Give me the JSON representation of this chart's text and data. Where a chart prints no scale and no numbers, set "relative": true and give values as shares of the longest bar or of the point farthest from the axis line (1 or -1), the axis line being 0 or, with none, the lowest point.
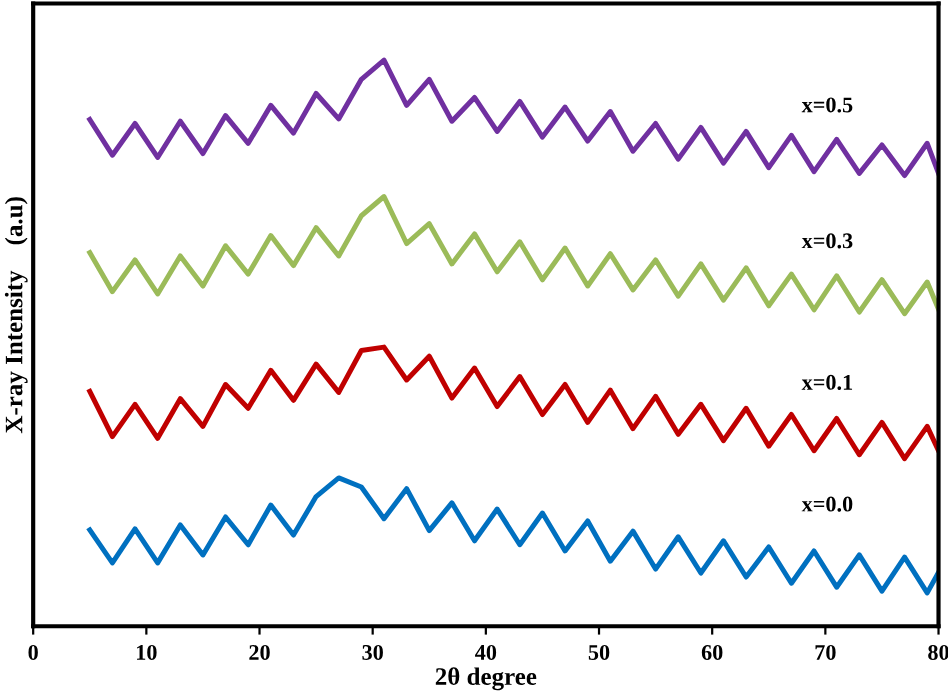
{
  "chart_data": {
    "type": "line",
    "relative": true,
    "xlabel": "2θ degree",
    "ylabel": "X-ray Intensity    (a.u)",
    "xlim": [
      0,
      80
    ],
    "xticks": [
      0,
      10,
      20,
      30,
      40,
      50,
      60,
      70,
      80
    ],
    "grid": false,
    "marker": "none",
    "line_style": "solid",
    "tick_labels": "x",
    "x": [
      5,
      7,
      9,
      11,
      13,
      15,
      17,
      19,
      21,
      23,
      25,
      27,
      29,
      31,
      33,
      35,
      37,
      39,
      41,
      43,
      45,
      47,
      49,
      51,
      53,
      55,
      57,
      59,
      61,
      63,
      65,
      67,
      69,
      71,
      73,
      75,
      77,
      79,
      80
    ],
    "series": [
      {
        "name": "x=0.5",
        "color": "#7030a0",
        "values": [
          0.895,
          0.832,
          0.888,
          0.828,
          0.892,
          0.835,
          0.902,
          0.853,
          0.92,
          0.871,
          0.941,
          0.896,
          0.966,
          1.0,
          0.92,
          0.966,
          0.892,
          0.934,
          0.874,
          0.927,
          0.864,
          0.917,
          0.857,
          0.909,
          0.839,
          0.888,
          0.825,
          0.881,
          0.818,
          0.874,
          0.81,
          0.867,
          0.803,
          0.86,
          0.8,
          0.85,
          0.796,
          0.853,
          0.8
        ]
      },
      {
        "name": "x=0.3",
        "color": "#9bbb59",
        "values": [
          0.66,
          0.591,
          0.647,
          0.587,
          0.654,
          0.601,
          0.672,
          0.622,
          0.69,
          0.637,
          0.704,
          0.654,
          0.725,
          0.759,
          0.676,
          0.711,
          0.64,
          0.693,
          0.626,
          0.679,
          0.612,
          0.668,
          0.601,
          0.658,
          0.594,
          0.647,
          0.583,
          0.64,
          0.576,
          0.633,
          0.566,
          0.622,
          0.559,
          0.619,
          0.555,
          0.612,
          0.552,
          0.608,
          0.56
        ]
      },
      {
        "name": "x=0.1",
        "color": "#c00000",
        "values": [
          0.415,
          0.335,
          0.392,
          0.332,
          0.402,
          0.353,
          0.427,
          0.385,
          0.452,
          0.399,
          0.463,
          0.413,
          0.487,
          0.493,
          0.435,
          0.477,
          0.403,
          0.456,
          0.388,
          0.441,
          0.374,
          0.427,
          0.36,
          0.417,
          0.349,
          0.406,
          0.339,
          0.392,
          0.328,
          0.385,
          0.318,
          0.374,
          0.31,
          0.367,
          0.303,
          0.36,
          0.296,
          0.353,
          0.31
        ]
      },
      {
        "name": "x=0.0",
        "color": "#0070c0",
        "values": [
          0.17,
          0.112,
          0.172,
          0.112,
          0.179,
          0.126,
          0.193,
          0.144,
          0.214,
          0.161,
          0.229,
          0.262,
          0.246,
          0.19,
          0.243,
          0.169,
          0.218,
          0.151,
          0.207,
          0.144,
          0.2,
          0.133,
          0.186,
          0.115,
          0.168,
          0.101,
          0.158,
          0.094,
          0.151,
          0.087,
          0.14,
          0.076,
          0.133,
          0.069,
          0.126,
          0.062,
          0.122,
          0.059,
          0.095
        ]
      }
    ]
  }
}
